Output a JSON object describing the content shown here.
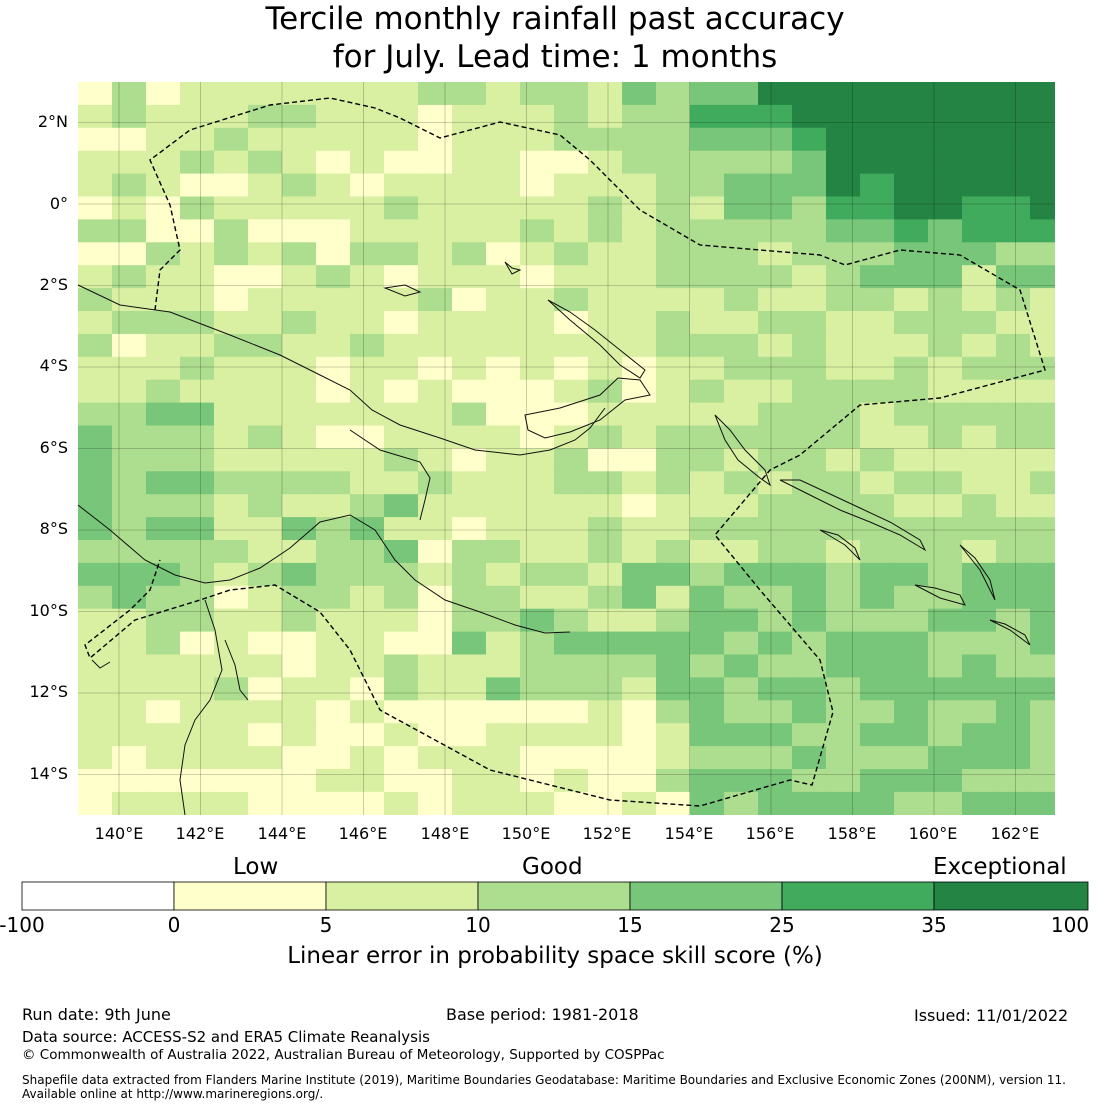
{
  "title_line1": "Tercile monthly rainfall past accuracy",
  "title_line2": "for July. Lead time: 1 months",
  "map": {
    "lon_labels": [
      "140°E",
      "142°E",
      "144°E",
      "146°E",
      "148°E",
      "150°E",
      "152°E",
      "154°E",
      "156°E",
      "158°E",
      "160°E",
      "162°E"
    ],
    "lat_labels": [
      "2°N",
      "0°",
      "2°S",
      "4°S",
      "6°S",
      "8°S",
      "10°S",
      "12°S",
      "14°S"
    ],
    "region": "Papua New Guinea and Solomon Islands"
  },
  "legend": {
    "categories": [
      "Low",
      "Good",
      "Exceptional"
    ],
    "ticks": [
      "-100",
      "0",
      "5",
      "10",
      "15",
      "25",
      "35",
      "100"
    ],
    "colors": [
      "#ffffff",
      "#ffffcc",
      "#d9f0a3",
      "#addd8e",
      "#78c679",
      "#41ab5d",
      "#238443"
    ],
    "label": "Linear error in probability space skill score (%)"
  },
  "footer": {
    "run_date": "Run date: 9th June",
    "base_period": "Base period: 1981-2018",
    "issued": "Issued: 11/01/2022",
    "data_source": "Data source: ACCESS-S2 and ERA5 Climate Reanalysis",
    "copyright": "© Commonwealth of Australia 2022, Australian Bureau of Meteorology, Supported by COSPPac",
    "shapefile_line1": "Shapefile data extracted from Flanders Marine Institute (2019), Maritime Boundaries Geodatabase: Maritime Boundaries and Exclusive Economic Zones (200NM), version 11.",
    "shapefile_line2": "Available online at http://www.marineregions.org/."
  }
}
